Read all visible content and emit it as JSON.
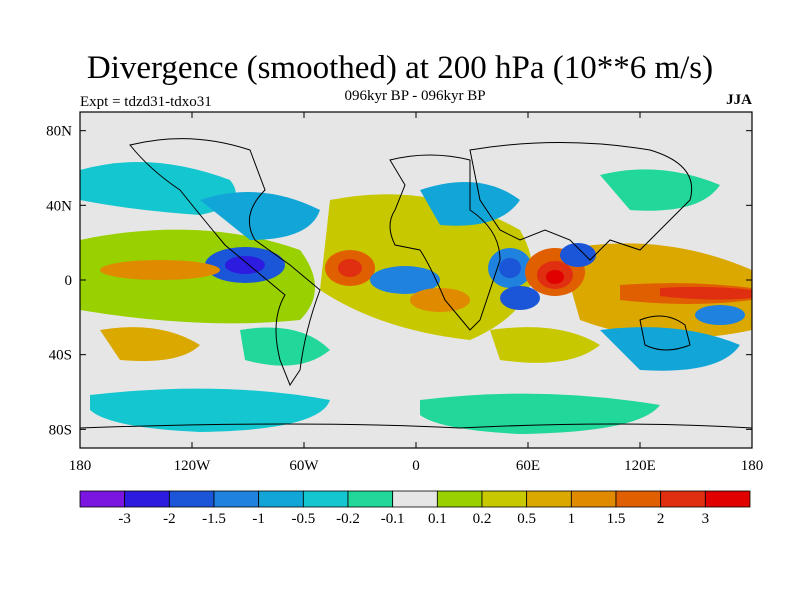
{
  "title": "Divergence (smoothed) at 200 hPa (10**6 m/s)",
  "experiment": "Expt = tdzd31-tdxo31",
  "period": "096kyr BP - 096kyr BP",
  "season": "JJA",
  "map": {
    "lon_ticks": [
      "180",
      "120W",
      "60W",
      "0",
      "60E",
      "120E",
      "180"
    ],
    "lat_ticks": [
      "80N",
      "40N",
      "0",
      "40S",
      "80S"
    ]
  },
  "colorbar": {
    "labels": [
      "-3",
      "-2",
      "-1.5",
      "-1",
      "-0.5",
      "-0.2",
      "-0.1",
      "0.1",
      "0.2",
      "0.5",
      "1",
      "1.5",
      "2",
      "3"
    ],
    "colors": [
      "#7a16e0",
      "#2d1ce0",
      "#1b55d8",
      "#1e82de",
      "#12a6d8",
      "#14c6cf",
      "#22d79a",
      "#e6e6e6",
      "#98d000",
      "#c8c800",
      "#dba800",
      "#e08a00",
      "#e05f00",
      "#e02e10",
      "#e00000"
    ]
  }
}
